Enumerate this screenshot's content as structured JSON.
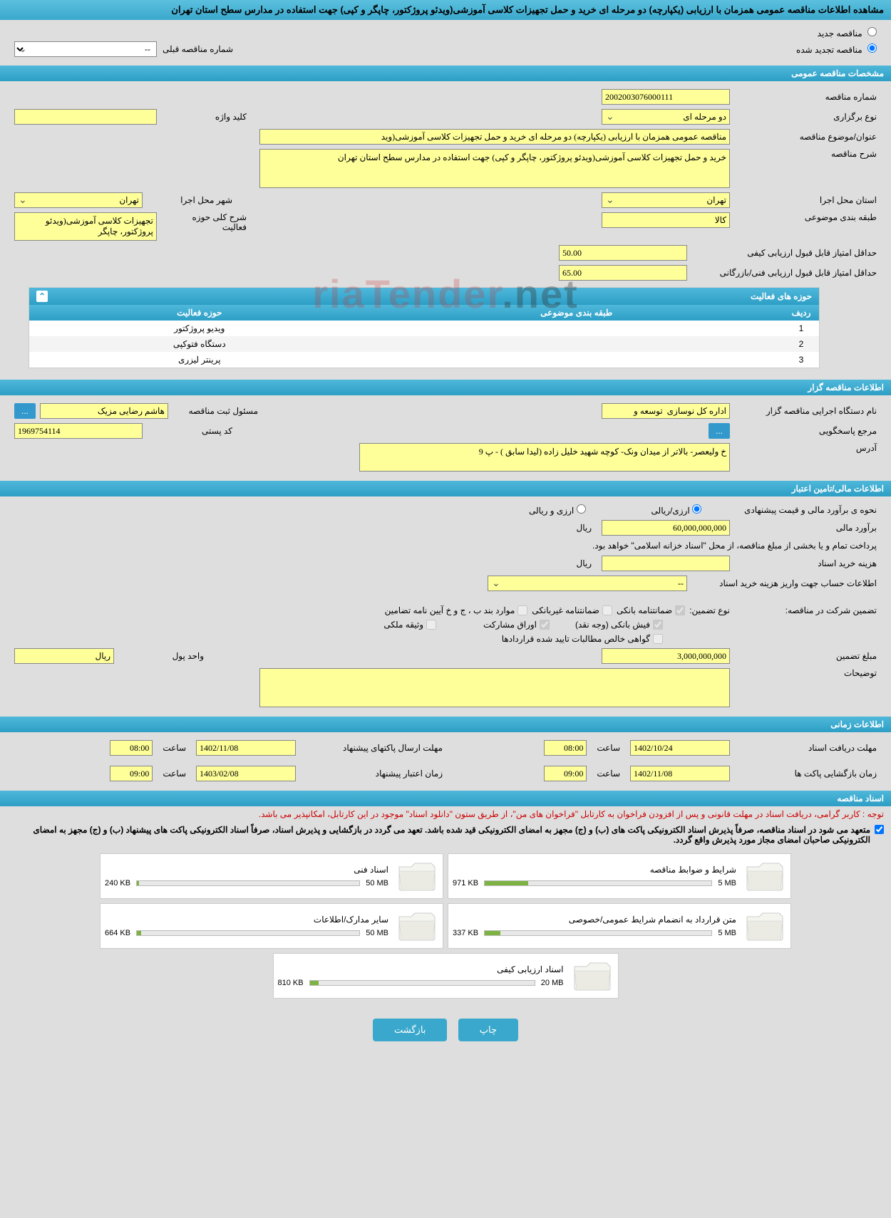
{
  "header": {
    "title": "مشاهده اطلاعات مناقصه عمومی همزمان با ارزیابی (یکپارچه) دو مرحله ای خرید و حمل تجهیزات کلاسی آموزشی(ویدئو پروژکتور، چاپگر و کپی) جهت استفاده در مدارس سطح استان تهران"
  },
  "radios": {
    "new_label": "مناقصه جدید",
    "renewed_label": "مناقصه تجدید شده",
    "prev_number_label": "شماره مناقصه قبلی",
    "prev_number_value": "--"
  },
  "section_general": {
    "title": "مشخصات مناقصه عمومی",
    "tender_number_label": "شماره مناقصه",
    "tender_number": "2002003076000111",
    "holding_type_label": "نوع برگزاری",
    "holding_type": "دو مرحله ای",
    "keyword_label": "کلید واژه",
    "keyword": "",
    "subject_label": "عنوان/موضوع مناقصه",
    "subject": "مناقصه عمومی همزمان با ارزیابی (یکپارچه) دو مرحله ای خرید و حمل تجهیزات کلاسی آموزشی(وید",
    "desc_label": "شرح مناقصه",
    "desc": "خرید و حمل تجهیزات کلاسی آموزشی(ویدئو پروژکتور، چاپگر و کپی) جهت استفاده در مدارس سطح استان تهران",
    "province_label": "استان محل اجرا",
    "province": "تهران",
    "city_label": "شهر محل اجرا",
    "city": "تهران",
    "category_label": "طبقه بندی موضوعی",
    "category": "کالا",
    "activity_desc_label": "شرح کلی حوزه فعالیت",
    "activity_desc": "تجهیزات کلاسی آموزشی(ویدئو پروژکتور، چاپگر",
    "min_qual_label": "حداقل امتیاز قابل قبول ارزیابی کیفی",
    "min_qual": "50.00",
    "min_tech_label": "حداقل امتیاز قابل قبول ارزیابی فنی/بازرگانی",
    "min_tech": "65.00"
  },
  "activity_panel": {
    "title": "حوزه های فعالیت",
    "col_row": "ردیف",
    "col_category": "طبقه بندی موضوعی",
    "col_activity": "حوزه فعالیت",
    "rows": [
      {
        "n": "1",
        "cat": "",
        "act": "ویدیو پروژکتور"
      },
      {
        "n": "2",
        "cat": "",
        "act": "دستگاه فتوکپی"
      },
      {
        "n": "3",
        "cat": "",
        "act": "پرینتر لیزری"
      }
    ]
  },
  "section_owner": {
    "title": "اطلاعات مناقصه گزار",
    "org_label": "نام دستگاه اجرایی مناقصه گزار",
    "org": "اداره کل نوسازی  توسعه و",
    "resp_label": "مسئول ثبت مناقصه",
    "resp": "هاشم رضایی مزیک",
    "ref_label": "مرجع پاسخگویی",
    "postal_label": "کد پستی",
    "postal": "1969754114",
    "address_label": "آدرس",
    "address": "خ ولیعصر- بالاتر از میدان ونک- کوچه شهید خلیل زاده (لیدا سابق ) - پ 9"
  },
  "section_finance": {
    "title": "اطلاعات مالی/تامین اعتبار",
    "method_label": "نحوه ی برآورد مالی و قیمت پیشنهادی",
    "rial_label": "ارزی/ریالی",
    "fx_label": "ارزی و ریالی",
    "estimate_label": "برآورد مالی",
    "estimate": "60,000,000,000",
    "unit_rial": "ریال",
    "note1": "پرداخت تمام و یا بخشی از مبلغ مناقصه، از محل \"اسناد خزانه اسلامی\" خواهد بود.",
    "doc_cost_label": "هزینه خرید اسناد",
    "doc_cost": "",
    "account_label": "اطلاعات حساب جهت واریز هزینه خرید اسناد",
    "account": "--",
    "guarantee_label": "تضمین شرکت در مناقصه:",
    "guarantee_type_label": "نوع تضمین:",
    "cb_bank": "ضمانتنامه بانکی",
    "cb_nonbank": "ضمانتنامه غیربانکی",
    "cb_clauses": "موارد بند ب ، ج و خ آیین نامه تضامین",
    "cb_fish": "فیش بانکی (وجه نقد)",
    "cb_securities": "اوراق مشارکت",
    "cb_property": "وثیقه ملکی",
    "cb_receivables": "گواهی خالص مطالبات تایید شده قراردادها",
    "amount_label": "مبلغ تضمین",
    "amount": "3,000,000,000",
    "currency_label": "واحد پول",
    "currency": "ریال",
    "notes_label": "توضیحات",
    "notes": ""
  },
  "section_time": {
    "title": "اطلاعات زمانی",
    "receive_label": "مهلت دریافت اسناد",
    "receive_date": "1402/10/24",
    "hour_label": "ساعت",
    "receive_time": "08:00",
    "send_label": "مهلت ارسال پاکتهای پیشنهاد",
    "send_date": "1402/11/08",
    "send_time": "08:00",
    "open_label": "زمان بازگشایی پاکت ها",
    "open_date": "1402/11/08",
    "open_time": "09:00",
    "valid_label": "زمان اعتبار پیشنهاد",
    "valid_date": "1403/02/08",
    "valid_time": "09:00"
  },
  "section_docs": {
    "title": "اسناد مناقصه",
    "note": "توجه : کاربر گرامی، دریافت اسناد در مهلت قانونی و پس از افزودن فراخوان به کارتابل \"فراخوان های من\"، از طریق ستون \"دانلود اسناد\" موجود در این کارتابل، امکانپذیر می باشد.",
    "agree": "متعهد می شود در اسناد مناقصه، صرفاً پذیرش اسناد الکترونیکی پاکت های (ب) و (ج) مجهز به امضای الکترونیکی قید شده باشد. تعهد می گردد در بازگشایی و پذیرش اسناد، صرفاً اسناد الکترونیکی پاکت های پیشنهاد (ب) و (ج) مجهز به امضای الکترونیکی صاحبان امضای مجاز مورد پذیرش واقع گردد.",
    "files": [
      {
        "title": "شرایط و ضوابط مناقصه",
        "size": "971 KB",
        "max": "5 MB",
        "pct": 19
      },
      {
        "title": "اسناد فنی",
        "size": "240 KB",
        "max": "50 MB",
        "pct": 1
      },
      {
        "title": "متن قرارداد به انضمام شرایط عمومی/خصوصی",
        "size": "337 KB",
        "max": "5 MB",
        "pct": 7
      },
      {
        "title": "سایر مدارک/اطلاعات",
        "size": "664 KB",
        "max": "50 MB",
        "pct": 2
      },
      {
        "title": "اسناد ارزیابی کیفی",
        "size": "810 KB",
        "max": "20 MB",
        "pct": 4
      }
    ]
  },
  "footer": {
    "print": "چاپ",
    "back": "بازگشت"
  },
  "watermark": {
    "a": "riaTender",
    "b": ".net"
  }
}
